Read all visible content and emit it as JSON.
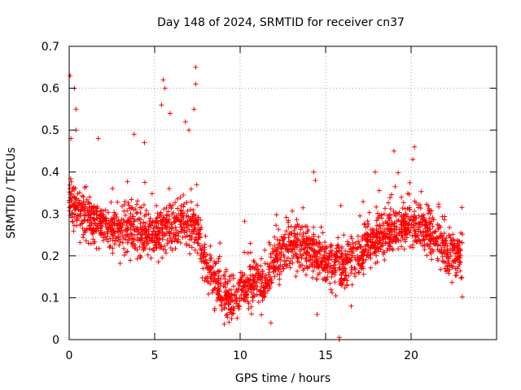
{
  "chart_data": {
    "type": "scatter",
    "title": "Day 148 of 2024, SRMTID for receiver cn37",
    "xlabel": "GPS time / hours",
    "ylabel": "SRMTID / TECUs",
    "xlim": [
      0,
      25
    ],
    "ylim": [
      0,
      0.7
    ],
    "xticks": [
      0,
      5,
      10,
      15,
      20
    ],
    "yticks": [
      0,
      0.1,
      0.2,
      0.3,
      0.4,
      0.5,
      0.6,
      0.7
    ],
    "xtick_labels": [
      "0",
      "5",
      "10",
      "15",
      "20"
    ],
    "ytick_labels": [
      "0",
      "0.1",
      "0.2",
      "0.3",
      "0.4",
      "0.5",
      "0.6",
      "0.7"
    ],
    "grid": true,
    "marker": "+",
    "series_color": "#ff0000",
    "profile": [
      [
        0,
        0.32
      ],
      [
        0.5,
        0.31
      ],
      [
        1,
        0.29
      ],
      [
        2,
        0.27
      ],
      [
        3,
        0.26
      ],
      [
        4,
        0.26
      ],
      [
        5,
        0.25
      ],
      [
        6,
        0.27
      ],
      [
        7,
        0.28
      ],
      [
        7.5,
        0.26
      ],
      [
        8,
        0.18
      ],
      [
        9,
        0.11
      ],
      [
        9.5,
        0.1
      ],
      [
        10,
        0.12
      ],
      [
        11,
        0.14
      ],
      [
        11.5,
        0.12
      ],
      [
        12,
        0.19
      ],
      [
        13,
        0.23
      ],
      [
        14,
        0.21
      ],
      [
        15,
        0.18
      ],
      [
        16,
        0.17
      ],
      [
        17,
        0.21
      ],
      [
        18,
        0.24
      ],
      [
        19,
        0.26
      ],
      [
        20,
        0.28
      ],
      [
        21,
        0.26
      ],
      [
        22,
        0.21
      ],
      [
        23,
        0.19
      ]
    ],
    "samples": [
      [
        0.05,
        0.63
      ],
      [
        0.3,
        0.6
      ],
      [
        0.4,
        0.55
      ],
      [
        0.4,
        0.5
      ],
      [
        0.1,
        0.48
      ],
      [
        5.5,
        0.62
      ],
      [
        5.6,
        0.6
      ],
      [
        5.9,
        0.54
      ],
      [
        5.4,
        0.56
      ],
      [
        6.8,
        0.52
      ],
      [
        7.0,
        0.5
      ],
      [
        7.4,
        0.65
      ],
      [
        7.4,
        0.61
      ],
      [
        7.3,
        0.55
      ],
      [
        3.8,
        0.49
      ],
      [
        4.4,
        0.47
      ],
      [
        1.7,
        0.48
      ],
      [
        14.3,
        0.4
      ],
      [
        14.4,
        0.38
      ],
      [
        19.0,
        0.45
      ],
      [
        20.2,
        0.46
      ],
      [
        20.1,
        0.43
      ],
      [
        17.9,
        0.4
      ],
      [
        9.5,
        0.05
      ],
      [
        11.8,
        0.04
      ],
      [
        8.5,
        0.07
      ],
      [
        14.5,
        0.06
      ],
      [
        16.5,
        0.08
      ],
      [
        15.8,
        0.0
      ],
      [
        15.8,
        0.005
      ]
    ],
    "scatter_spread": 0.055,
    "point_count": 2400
  }
}
